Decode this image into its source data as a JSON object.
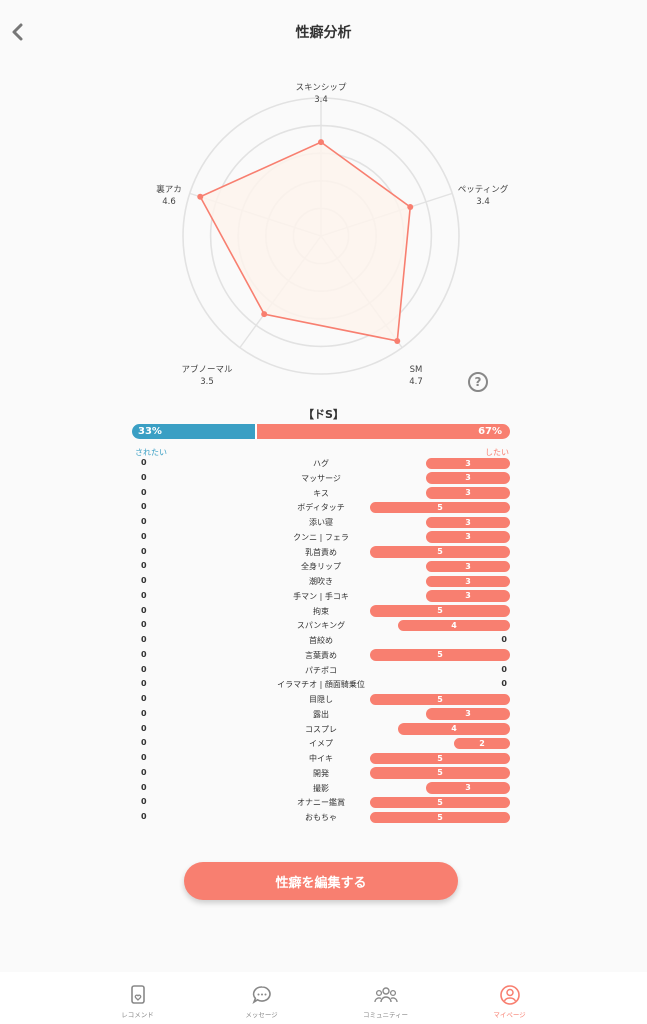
{
  "header": {
    "title": "性癖分析",
    "back_icon": "chevron-left-icon"
  },
  "radar": {
    "axes": [
      {
        "label": "スキンシップ",
        "value": 3.4
      },
      {
        "label": "ペッティング",
        "value": 3.4
      },
      {
        "label": "SM",
        "value": 4.7
      },
      {
        "label": "アブノーマル",
        "value": 3.5
      },
      {
        "label": "裏アカ",
        "value": 4.6
      }
    ],
    "max": 5,
    "fill_color": "#fdf3ec",
    "stroke_color": "#f87f70"
  },
  "help": {
    "icon": "question-icon",
    "text": "?"
  },
  "type_title": "【ドS】",
  "ratio": {
    "left_pct": 33,
    "right_pct": 67,
    "left_text": "33%",
    "right_text": "67%",
    "left_color": "#3a9fc4",
    "right_color": "#f87f70"
  },
  "side_labels": {
    "left": "されたい",
    "right": "したい"
  },
  "items": [
    {
      "name": "ハグ",
      "left": "0",
      "right": 3
    },
    {
      "name": "マッサージ",
      "left": "0",
      "right": 3
    },
    {
      "name": "キス",
      "left": "0",
      "right": 3
    },
    {
      "name": "ボディタッチ",
      "left": "0",
      "right": 5
    },
    {
      "name": "添い寝",
      "left": "0",
      "right": 3
    },
    {
      "name": "クンニ | フェラ",
      "left": "0",
      "right": 3
    },
    {
      "name": "乳首責め",
      "left": "0",
      "right": 5
    },
    {
      "name": "全身リップ",
      "left": "0",
      "right": 3
    },
    {
      "name": "潮吹き",
      "left": "0",
      "right": 3
    },
    {
      "name": "手マン | 手コキ",
      "left": "0",
      "right": 3
    },
    {
      "name": "拘束",
      "left": "0",
      "right": 5
    },
    {
      "name": "スパンキング",
      "left": "0",
      "right": 4
    },
    {
      "name": "首絞め",
      "left": "0",
      "right": 0
    },
    {
      "name": "言葉責め",
      "left": "0",
      "right": 5
    },
    {
      "name": "パチポコ",
      "left": "0",
      "right": 0
    },
    {
      "name": "イラマチオ | 顔面騎乗位",
      "left": "0",
      "right": 0
    },
    {
      "name": "目隠し",
      "left": "0",
      "right": 5
    },
    {
      "name": "露出",
      "left": "0",
      "right": 3
    },
    {
      "name": "コスプレ",
      "left": "0",
      "right": 4
    },
    {
      "name": "イメプ",
      "left": "0",
      "right": 2
    },
    {
      "name": "中イキ",
      "left": "0",
      "right": 5
    },
    {
      "name": "開発",
      "left": "0",
      "right": 5
    },
    {
      "name": "撮影",
      "left": "0",
      "right": 3
    },
    {
      "name": "オナニー鑑賞",
      "left": "0",
      "right": 5
    },
    {
      "name": "おもちゃ",
      "left": "0",
      "right": 5
    }
  ],
  "edit_button": {
    "label": "性癖を編集する"
  },
  "tabs": [
    {
      "label": "レコメンド",
      "icon": "recommend-card-icon",
      "active": false
    },
    {
      "label": "メッセージ",
      "icon": "message-bubble-icon",
      "active": false
    },
    {
      "label": "コミュニティー",
      "icon": "community-icon",
      "active": false
    },
    {
      "label": "マイページ",
      "icon": "user-circle-icon",
      "active": true
    }
  ]
}
